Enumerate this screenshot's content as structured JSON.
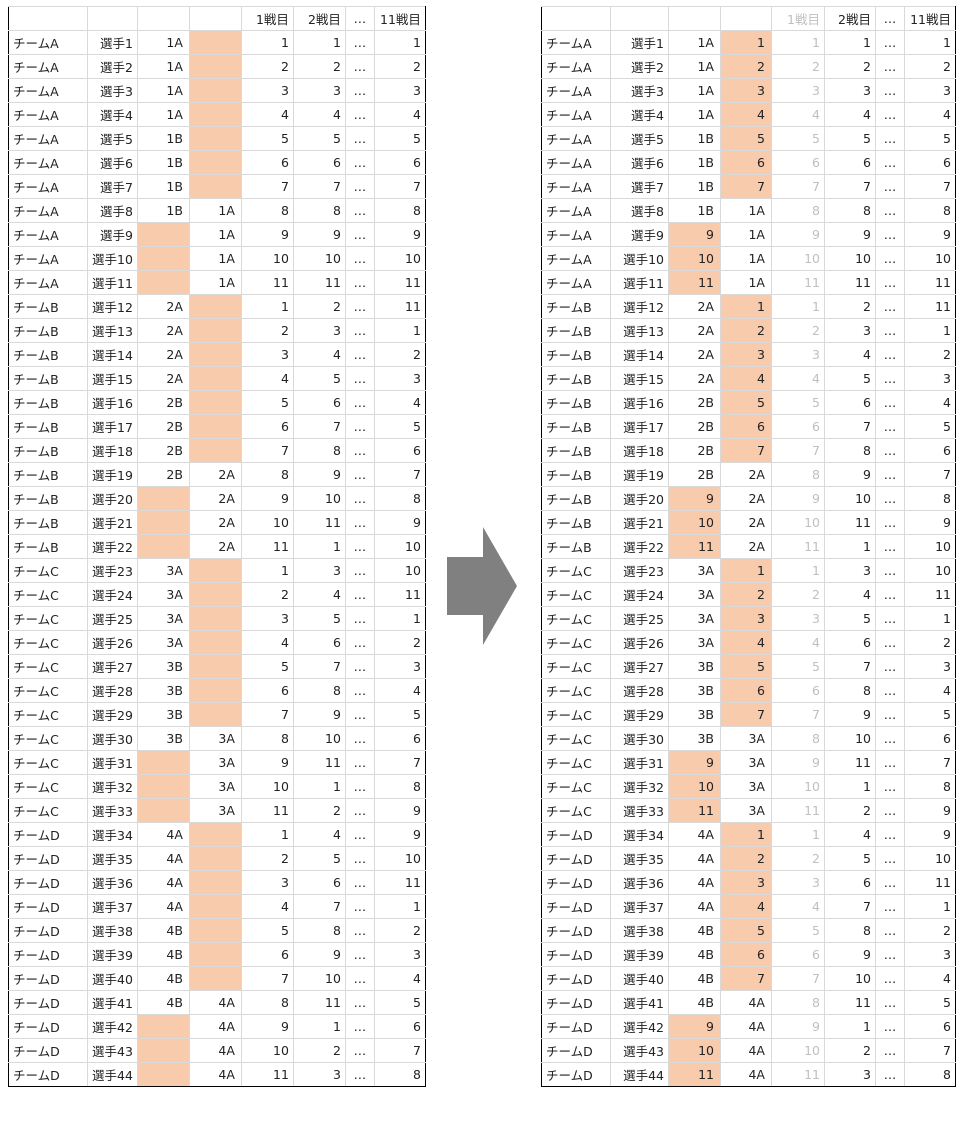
{
  "header": {
    "battle1": "1戦目",
    "battle2": "2戦目",
    "ellipsis": "…",
    "battle11": "11戦目"
  },
  "teams": [
    {
      "name": "チームA",
      "players": [
        "選手1",
        "選手2",
        "選手3",
        "選手4",
        "選手5",
        "選手6",
        "選手7",
        "選手8",
        "選手9",
        "選手10",
        "選手11"
      ],
      "group1": [
        "1A",
        "1A",
        "1A",
        "1A",
        "1B",
        "1B",
        "1B",
        "1B",
        "",
        "",
        ""
      ],
      "group2": [
        "",
        "",
        "",
        "",
        "",
        "",
        "",
        "1A",
        "1A",
        "1A",
        "1A"
      ],
      "battle2": [
        "1",
        "2",
        "3",
        "4",
        "5",
        "6",
        "7",
        "8",
        "9",
        "10",
        "11"
      ],
      "battle11": [
        "1",
        "2",
        "3",
        "4",
        "5",
        "6",
        "7",
        "8",
        "9",
        "10",
        "11"
      ]
    },
    {
      "name": "チームB",
      "players": [
        "選手12",
        "選手13",
        "選手14",
        "選手15",
        "選手16",
        "選手17",
        "選手18",
        "選手19",
        "選手20",
        "選手21",
        "選手22"
      ],
      "group1": [
        "2A",
        "2A",
        "2A",
        "2A",
        "2B",
        "2B",
        "2B",
        "2B",
        "",
        "",
        ""
      ],
      "group2": [
        "",
        "",
        "",
        "",
        "",
        "",
        "",
        "2A",
        "2A",
        "2A",
        "2A"
      ],
      "battle2": [
        "2",
        "3",
        "4",
        "5",
        "6",
        "7",
        "8",
        "9",
        "10",
        "11",
        "1"
      ],
      "battle11": [
        "11",
        "1",
        "2",
        "3",
        "4",
        "5",
        "6",
        "7",
        "8",
        "9",
        "10"
      ]
    },
    {
      "name": "チームC",
      "players": [
        "選手23",
        "選手24",
        "選手25",
        "選手26",
        "選手27",
        "選手28",
        "選手29",
        "選手30",
        "選手31",
        "選手32",
        "選手33"
      ],
      "group1": [
        "3A",
        "3A",
        "3A",
        "3A",
        "3B",
        "3B",
        "3B",
        "3B",
        "",
        "",
        ""
      ],
      "group2": [
        "",
        "",
        "",
        "",
        "",
        "",
        "",
        "3A",
        "3A",
        "3A",
        "3A"
      ],
      "battle2": [
        "3",
        "4",
        "5",
        "6",
        "7",
        "8",
        "9",
        "10",
        "11",
        "1",
        "2"
      ],
      "battle11": [
        "10",
        "11",
        "1",
        "2",
        "3",
        "4",
        "5",
        "6",
        "7",
        "8",
        "9"
      ]
    },
    {
      "name": "チームD",
      "players": [
        "選手34",
        "選手35",
        "選手36",
        "選手37",
        "選手38",
        "選手39",
        "選手40",
        "選手41",
        "選手42",
        "選手43",
        "選手44"
      ],
      "group1": [
        "4A",
        "4A",
        "4A",
        "4A",
        "4B",
        "4B",
        "4B",
        "4B",
        "",
        "",
        ""
      ],
      "group2": [
        "",
        "",
        "",
        "",
        "",
        "",
        "",
        "4A",
        "4A",
        "4A",
        "4A"
      ],
      "battle2": [
        "4",
        "5",
        "6",
        "7",
        "8",
        "9",
        "10",
        "11",
        "1",
        "2",
        "3"
      ],
      "battle11": [
        "9",
        "10",
        "11",
        "1",
        "2",
        "3",
        "4",
        "5",
        "6",
        "7",
        "8"
      ]
    }
  ],
  "battle1": [
    "1",
    "2",
    "3",
    "4",
    "5",
    "6",
    "7",
    "8",
    "9",
    "10",
    "11"
  ],
  "colors": {
    "highlight": "#f8cbad",
    "grid": "#d9d9d9",
    "faded_text": "#bfbfbf",
    "arrow": "#808080"
  },
  "arrow_icon": "right-arrow-icon"
}
